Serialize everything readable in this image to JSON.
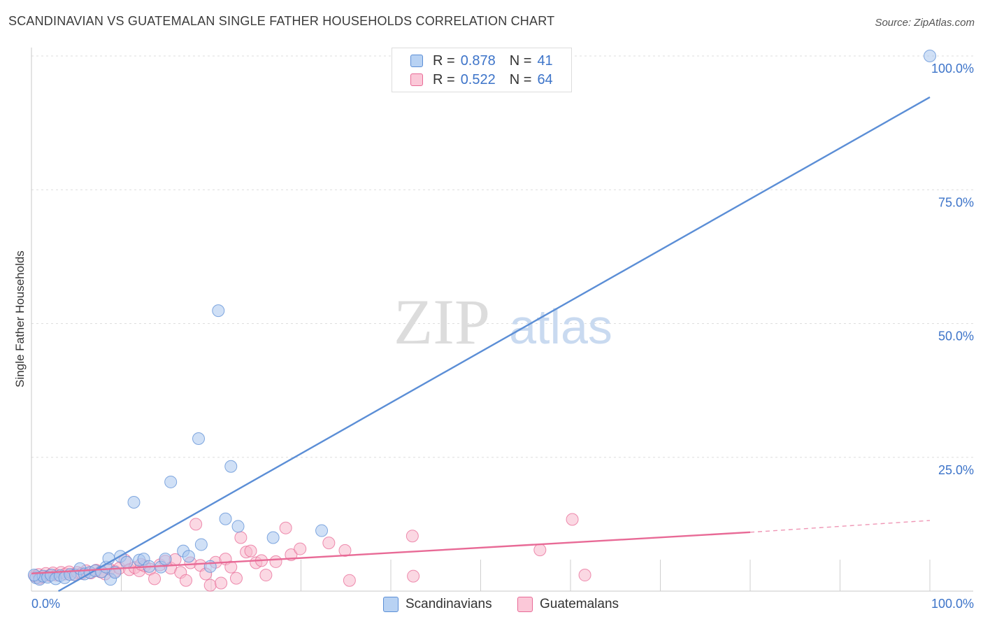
{
  "title": "SCANDINAVIAN VS GUATEMALAN SINGLE FATHER HOUSEHOLDS CORRELATION CHART",
  "source": "Source: ZipAtlas.com",
  "watermark": {
    "zip": "ZIP",
    "atlas": "atlas"
  },
  "legend": {
    "scandinavians": {
      "r_label": "R =",
      "r_value": "0.878",
      "n_label": "N =",
      "n_value": "41",
      "color": "#5b8ed6"
    },
    "guatemalans": {
      "r_label": "R =",
      "r_value": "0.522",
      "n_label": "N =",
      "n_value": "64",
      "color": "#e86a96"
    }
  },
  "bottom_legend": {
    "scandinavians": "Scandinavians",
    "guatemalans": "Guatemalans"
  },
  "chart_data": {
    "type": "scatter",
    "title": "SCANDINAVIAN VS GUATEMALAN SINGLE FATHER HOUSEHOLDS CORRELATION CHART",
    "xlabel": "",
    "ylabel": "Single Father Households",
    "xlim": [
      0,
      100
    ],
    "ylim": [
      0,
      100
    ],
    "x_tick_labels": [
      "0.0%",
      "100.0%"
    ],
    "y_ticks": [
      25,
      50,
      75,
      100
    ],
    "y_tick_labels": [
      "25.0%",
      "50.0%",
      "75.0%",
      "100.0%"
    ],
    "grid": true,
    "series": [
      {
        "name": "Scandinavians",
        "color": "#5b8ed6",
        "fill": "#a9c6ee",
        "trend": {
          "x": [
            3,
            100
          ],
          "y": [
            0,
            92.3
          ]
        },
        "points": [
          {
            "x": 0.5,
            "y": 2.5
          },
          {
            "x": 0.9,
            "y": 2.2
          },
          {
            "x": 1.3,
            "y": 2.8
          },
          {
            "x": 1.8,
            "y": 2.6
          },
          {
            "x": 2.2,
            "y": 3.0
          },
          {
            "x": 2.7,
            "y": 2.3
          },
          {
            "x": 3.2,
            "y": 2.9
          },
          {
            "x": 3.7,
            "y": 2.5
          },
          {
            "x": 4.3,
            "y": 3.1
          },
          {
            "x": 4.9,
            "y": 3.0
          },
          {
            "x": 5.4,
            "y": 4.2
          },
          {
            "x": 5.9,
            "y": 3.2
          },
          {
            "x": 6.5,
            "y": 3.5
          },
          {
            "x": 7.1,
            "y": 3.8
          },
          {
            "x": 7.8,
            "y": 3.6
          },
          {
            "x": 8.3,
            "y": 4.5
          },
          {
            "x": 8.6,
            "y": 6.1
          },
          {
            "x": 8.8,
            "y": 2.2
          },
          {
            "x": 9.3,
            "y": 3.5
          },
          {
            "x": 9.9,
            "y": 6.5
          },
          {
            "x": 10.6,
            "y": 5.4
          },
          {
            "x": 11.4,
            "y": 16.6
          },
          {
            "x": 12.0,
            "y": 5.8
          },
          {
            "x": 12.5,
            "y": 6.0
          },
          {
            "x": 13.1,
            "y": 4.6
          },
          {
            "x": 14.4,
            "y": 4.5
          },
          {
            "x": 14.9,
            "y": 6.0
          },
          {
            "x": 15.5,
            "y": 20.4
          },
          {
            "x": 16.9,
            "y": 7.5
          },
          {
            "x": 17.5,
            "y": 6.5
          },
          {
            "x": 18.6,
            "y": 28.5
          },
          {
            "x": 18.9,
            "y": 8.7
          },
          {
            "x": 19.9,
            "y": 4.6
          },
          {
            "x": 20.8,
            "y": 52.4
          },
          {
            "x": 21.6,
            "y": 13.5
          },
          {
            "x": 22.2,
            "y": 23.3
          },
          {
            "x": 23.0,
            "y": 12.1
          },
          {
            "x": 26.9,
            "y": 10.0
          },
          {
            "x": 32.3,
            "y": 11.3
          },
          {
            "x": 100.0,
            "y": 100.0
          },
          {
            "x": 0.3,
            "y": 3.0
          }
        ]
      },
      {
        "name": "Guatemalans",
        "color": "#e86a96",
        "fill": "#f7b8cc",
        "trend": {
          "x": [
            0,
            80
          ],
          "y": [
            3.3,
            11.0
          ]
        },
        "trend_extension": {
          "x": [
            80,
            100
          ],
          "y": [
            11.0,
            13.2
          ]
        },
        "points": [
          {
            "x": 0.4,
            "y": 2.8
          },
          {
            "x": 0.8,
            "y": 3.1
          },
          {
            "x": 1.2,
            "y": 2.7
          },
          {
            "x": 1.6,
            "y": 3.3
          },
          {
            "x": 2.0,
            "y": 2.9
          },
          {
            "x": 2.4,
            "y": 3.4
          },
          {
            "x": 2.8,
            "y": 3.0
          },
          {
            "x": 3.3,
            "y": 3.5
          },
          {
            "x": 3.8,
            "y": 3.2
          },
          {
            "x": 4.2,
            "y": 3.6
          },
          {
            "x": 4.7,
            "y": 3.1
          },
          {
            "x": 5.1,
            "y": 3.5
          },
          {
            "x": 5.6,
            "y": 3.3
          },
          {
            "x": 6.1,
            "y": 3.8
          },
          {
            "x": 6.6,
            "y": 3.4
          },
          {
            "x": 7.2,
            "y": 3.9
          },
          {
            "x": 7.7,
            "y": 3.6
          },
          {
            "x": 8.2,
            "y": 3.2
          },
          {
            "x": 8.7,
            "y": 4.1
          },
          {
            "x": 9.3,
            "y": 3.7
          },
          {
            "x": 9.8,
            "y": 4.3
          },
          {
            "x": 10.4,
            "y": 5.8
          },
          {
            "x": 10.9,
            "y": 4.0
          },
          {
            "x": 11.5,
            "y": 4.4
          },
          {
            "x": 12.0,
            "y": 3.8
          },
          {
            "x": 12.6,
            "y": 4.7
          },
          {
            "x": 13.2,
            "y": 4.1
          },
          {
            "x": 13.7,
            "y": 2.3
          },
          {
            "x": 14.3,
            "y": 4.9
          },
          {
            "x": 14.9,
            "y": 5.6
          },
          {
            "x": 15.5,
            "y": 4.3
          },
          {
            "x": 16.0,
            "y": 5.9
          },
          {
            "x": 16.6,
            "y": 3.5
          },
          {
            "x": 17.2,
            "y": 2.0
          },
          {
            "x": 17.7,
            "y": 5.3
          },
          {
            "x": 18.3,
            "y": 12.5
          },
          {
            "x": 18.8,
            "y": 4.8
          },
          {
            "x": 19.4,
            "y": 3.2
          },
          {
            "x": 19.9,
            "y": 1.1
          },
          {
            "x": 20.5,
            "y": 5.4
          },
          {
            "x": 21.1,
            "y": 1.5
          },
          {
            "x": 21.6,
            "y": 6.0
          },
          {
            "x": 22.2,
            "y": 4.5
          },
          {
            "x": 22.8,
            "y": 2.4
          },
          {
            "x": 23.3,
            "y": 10.0
          },
          {
            "x": 23.9,
            "y": 7.3
          },
          {
            "x": 24.4,
            "y": 7.5
          },
          {
            "x": 25.0,
            "y": 5.3
          },
          {
            "x": 25.6,
            "y": 5.7
          },
          {
            "x": 26.1,
            "y": 3.0
          },
          {
            "x": 27.2,
            "y": 5.5
          },
          {
            "x": 28.3,
            "y": 11.8
          },
          {
            "x": 28.9,
            "y": 6.8
          },
          {
            "x": 29.9,
            "y": 7.9
          },
          {
            "x": 33.1,
            "y": 9.0
          },
          {
            "x": 34.9,
            "y": 7.6
          },
          {
            "x": 35.4,
            "y": 2.0
          },
          {
            "x": 42.4,
            "y": 10.3
          },
          {
            "x": 42.5,
            "y": 2.8
          },
          {
            "x": 56.6,
            "y": 7.7
          },
          {
            "x": 60.2,
            "y": 13.4
          },
          {
            "x": 61.6,
            "y": 3.0
          },
          {
            "x": 0.9,
            "y": 2.4
          },
          {
            "x": 12.2,
            "y": 5.0
          }
        ]
      }
    ]
  }
}
